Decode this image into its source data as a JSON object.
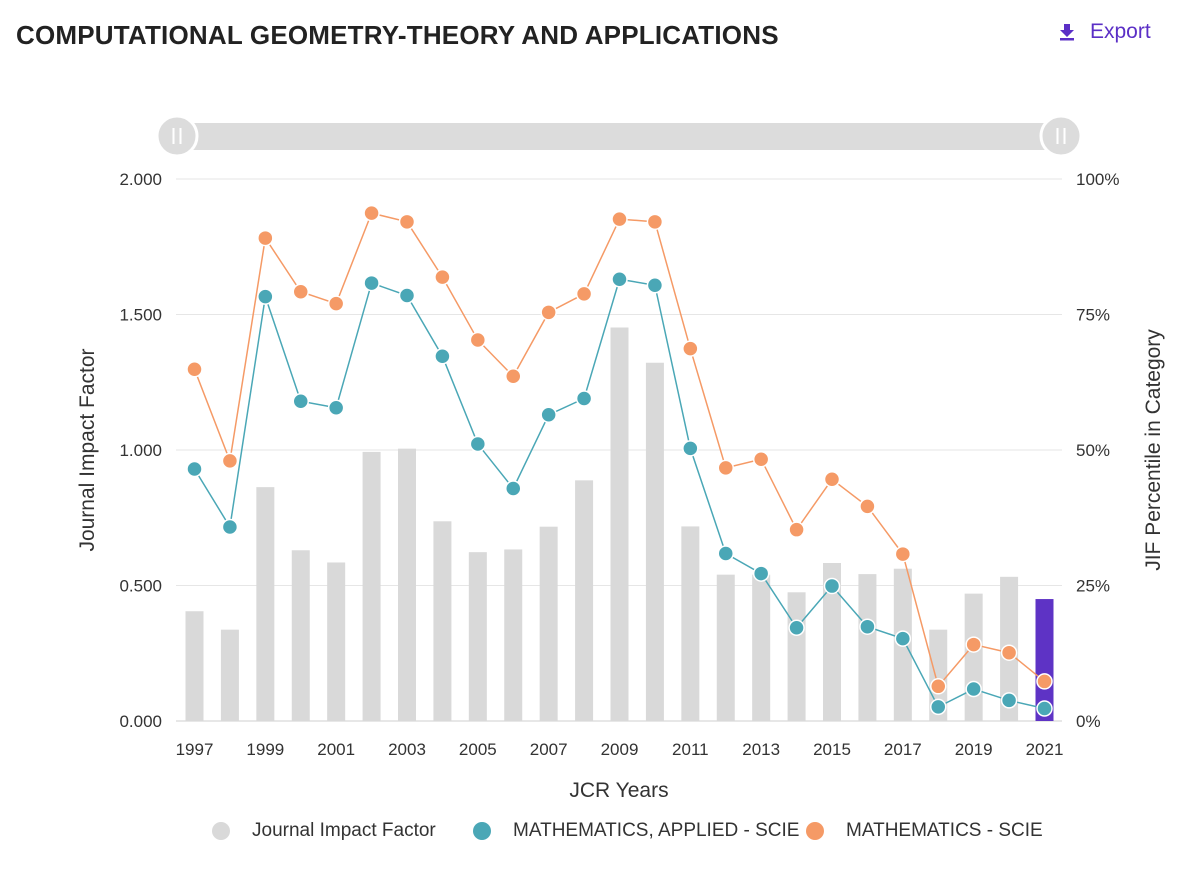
{
  "header": {
    "title": "COMPUTATIONAL GEOMETRY-THEORY AND APPLICATIONS",
    "export_label": "Export"
  },
  "chart_data": {
    "type": "bar",
    "years": [
      1997,
      1998,
      1999,
      2000,
      2001,
      2002,
      2003,
      2004,
      2005,
      2006,
      2007,
      2008,
      2009,
      2010,
      2011,
      2012,
      2013,
      2014,
      2015,
      2016,
      2017,
      2018,
      2019,
      2020,
      2021
    ],
    "x_tick_labels": [
      "1997",
      "1999",
      "2001",
      "2003",
      "2005",
      "2007",
      "2009",
      "2011",
      "2013",
      "2015",
      "2017",
      "2019",
      "2021"
    ],
    "xlabel": "JCR Years",
    "ylabel_left": "Journal Impact Factor",
    "ylabel_right": "JIF Percentile in Category",
    "y_left_range": [
      0,
      2
    ],
    "y_left_ticks": [
      "0.000",
      "0.500",
      "1.000",
      "1.500",
      "2.000"
    ],
    "y_right_range": [
      0,
      100
    ],
    "y_right_ticks": [
      "0%",
      "25%",
      "50%",
      "75%",
      "100%"
    ],
    "highlight_year": 2021,
    "series": [
      {
        "name": "Journal Impact Factor",
        "kind": "bar",
        "axis": "left",
        "color": "#d9d9d9",
        "highlight_color": "#5e33c5",
        "values": [
          0.405,
          0.337,
          0.863,
          0.63,
          0.585,
          0.993,
          1.005,
          0.737,
          0.623,
          0.633,
          0.717,
          0.888,
          1.452,
          1.322,
          0.718,
          0.54,
          0.54,
          0.475,
          0.583,
          0.542,
          0.562,
          0.337,
          0.47,
          0.532,
          0.45
        ]
      },
      {
        "name": "MATHEMATICS, APPLIED - SCIE",
        "kind": "line",
        "axis": "right",
        "color": "#4aa7b6",
        "values": [
          46.5,
          35.8,
          78.3,
          59.0,
          57.8,
          80.8,
          78.5,
          67.3,
          51.1,
          42.9,
          56.5,
          59.5,
          81.5,
          80.4,
          50.3,
          30.9,
          27.2,
          17.2,
          24.9,
          17.4,
          15.2,
          2.6,
          5.9,
          3.8,
          2.3
        ]
      },
      {
        "name": "MATHEMATICS - SCIE",
        "kind": "line",
        "axis": "right",
        "color": "#f59a66",
        "values": [
          64.9,
          48.0,
          89.1,
          79.2,
          77.0,
          93.7,
          92.1,
          81.9,
          70.3,
          63.6,
          75.4,
          78.8,
          92.6,
          92.1,
          68.7,
          46.7,
          48.3,
          35.3,
          44.6,
          39.6,
          30.8,
          6.4,
          14.1,
          12.6,
          7.3
        ]
      }
    ]
  }
}
